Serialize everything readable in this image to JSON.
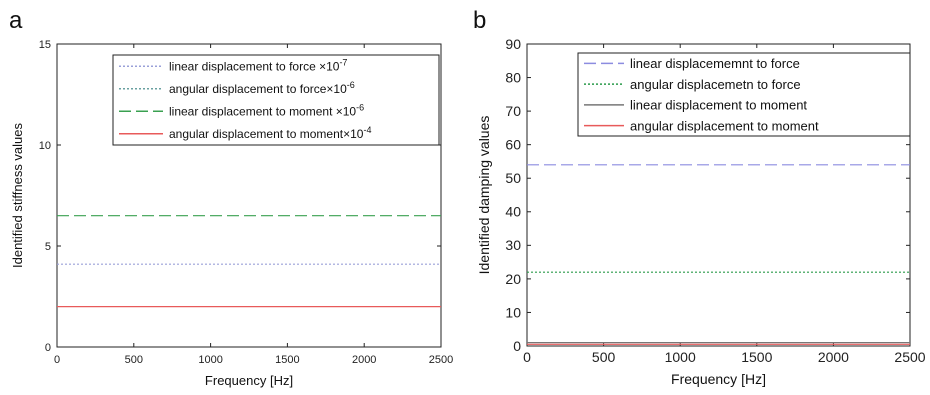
{
  "figure": {
    "panels": [
      {
        "label": "a"
      },
      {
        "label": "b"
      }
    ]
  },
  "chart_data": [
    {
      "type": "line",
      "panel_label": "a",
      "title": "",
      "xlabel": "Frequency [Hz]",
      "ylabel": "Identified stiffness values",
      "xlim": [
        0,
        2500
      ],
      "ylim": [
        0,
        15
      ],
      "x_ticks": [
        0,
        500,
        1000,
        1500,
        2000,
        2500
      ],
      "y_ticks": [
        0,
        5,
        10,
        15
      ],
      "x_tick_labels": [
        "0",
        "500",
        "1000",
        "1500",
        "2000",
        "2500"
      ],
      "y_tick_labels": [
        "0",
        "5",
        "10",
        "15"
      ],
      "grid": false,
      "legend_position": "top-right",
      "x": [
        0,
        2500
      ],
      "series": [
        {
          "name": "linear displacement to force ×10",
          "exponent": "-7",
          "values": [
            4.1,
            4.1
          ],
          "color": "#9aa0d8",
          "style": "dotted"
        },
        {
          "name": "angular displacement to force×10",
          "exponent": "-6",
          "values": [
            null,
            null
          ],
          "color": "#6aa0a0",
          "style": "dotted"
        },
        {
          "name": "linear displacement to moment ×10",
          "exponent": "-6",
          "values": [
            6.5,
            6.5
          ],
          "color": "#3aa050",
          "style": "dashed"
        },
        {
          "name": "angular displacement to moment×10",
          "exponent": "-4",
          "values": [
            2.0,
            2.0
          ],
          "color": "#e85a5a",
          "style": "solid"
        }
      ]
    },
    {
      "type": "line",
      "panel_label": "b",
      "title": "",
      "xlabel": "Frequency [Hz]",
      "ylabel": "Identified damping values",
      "xlim": [
        0,
        2500
      ],
      "ylim": [
        0,
        90
      ],
      "x_ticks": [
        0,
        500,
        1000,
        1500,
        2000,
        2500
      ],
      "y_ticks": [
        0,
        10,
        20,
        30,
        40,
        50,
        60,
        70,
        80,
        90
      ],
      "x_tick_labels": [
        "0",
        "500",
        "1000",
        "1500",
        "2000",
        "2500"
      ],
      "y_tick_labels": [
        "0",
        "10",
        "20",
        "30",
        "40",
        "50",
        "60",
        "70",
        "80",
        "90"
      ],
      "grid": false,
      "legend_position": "top-right",
      "x": [
        0,
        2500
      ],
      "series": [
        {
          "name": "linear displacememnt to force",
          "values": [
            54,
            54
          ],
          "color": "#8c8ce0",
          "style": "dashed"
        },
        {
          "name": "angular displacemetn to force",
          "values": [
            22,
            22
          ],
          "color": "#2a9a4a",
          "style": "dotted"
        },
        {
          "name": "linear displacement to moment",
          "values": [
            1,
            1
          ],
          "color": "#777777",
          "style": "solid"
        },
        {
          "name": "angular displacement to moment",
          "values": [
            0.5,
            0.5
          ],
          "color": "#e85a5a",
          "style": "solid"
        }
      ]
    }
  ]
}
